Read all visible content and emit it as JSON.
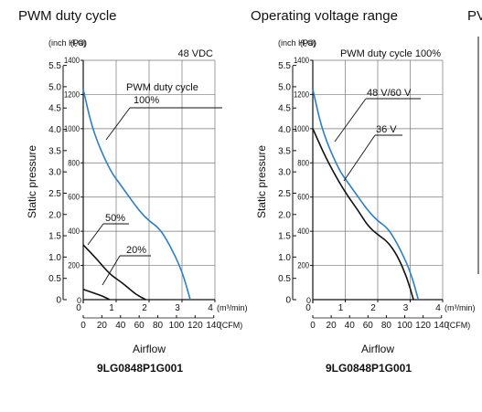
{
  "chart_data": [
    {
      "type": "line",
      "title": "PWM duty cycle",
      "xlabel": "Airflow",
      "x_units": "(m³/min)",
      "x2_units": "(CFM)",
      "ylabel": "Static pressure",
      "y_units_left": "(inch H₂O)",
      "y_units_right": "(Pa)",
      "model": "9LG0848P1G001",
      "condition": "48 VDC",
      "xlim": [
        0,
        4
      ],
      "ylim": [
        0,
        1400
      ],
      "x_ticks": [
        "0",
        "1",
        "2",
        "3",
        "4"
      ],
      "x2_ticks": [
        "0",
        "20",
        "40",
        "60",
        "80",
        "100",
        "120",
        "140"
      ],
      "y_ticks_pa": [
        "200",
        "400",
        "600",
        "800",
        "1000",
        "1200",
        "1400"
      ],
      "y_ticks_inch": [
        "0",
        "0.5",
        "1.0",
        "1.5",
        "2.0",
        "2.5",
        "3.0",
        "3.5",
        "4.0",
        "4.5",
        "5.0",
        "5.5"
      ],
      "grid": true,
      "series": [
        {
          "name": "100%",
          "color": "#2a7fc8",
          "points": [
            [
              0,
              1230
            ],
            [
              0.3,
              980
            ],
            [
              0.8,
              760
            ],
            [
              1.1,
              680
            ],
            [
              1.4,
              600
            ],
            [
              1.7,
              520
            ],
            [
              2.0,
              460
            ],
            [
              2.3,
              420
            ],
            [
              2.6,
              330
            ],
            [
              3.0,
              170
            ],
            [
              3.25,
              0
            ]
          ]
        },
        {
          "name": "50%",
          "color": "#111111",
          "points": [
            [
              0,
              320
            ],
            [
              0.4,
              240
            ],
            [
              0.8,
              150
            ],
            [
              1.1,
              110
            ],
            [
              1.3,
              80
            ],
            [
              1.6,
              30
            ],
            [
              1.9,
              0
            ]
          ]
        },
        {
          "name": "20%",
          "color": "#111111",
          "points": [
            [
              0,
              60
            ],
            [
              0.3,
              40
            ],
            [
              0.6,
              20
            ],
            [
              0.8,
              0
            ]
          ]
        }
      ],
      "annotations": [
        {
          "lines": [
            "PWM duty cycle",
            "100%"
          ],
          "series": "100%"
        },
        {
          "lines": [
            "50%"
          ],
          "series": "50%"
        },
        {
          "lines": [
            "20%"
          ],
          "series": "20%"
        }
      ]
    },
    {
      "type": "line",
      "title": "Operating voltage range",
      "xlabel": "Airflow",
      "x_units": "(m³/min)",
      "x2_units": "(CFM)",
      "ylabel": "Static pressure",
      "y_units_left": "(inch H₂O)",
      "y_units_right": "(Pa)",
      "model": "9LG0848P1G001",
      "condition": "PWM duty cycle 100%",
      "xlim": [
        0,
        4
      ],
      "ylim": [
        0,
        1400
      ],
      "x_ticks": [
        "0",
        "1",
        "2",
        "3",
        "4"
      ],
      "x2_ticks": [
        "0",
        "20",
        "40",
        "60",
        "80",
        "100",
        "120",
        "140"
      ],
      "y_ticks_pa": [
        "200",
        "400",
        "600",
        "800",
        "1000",
        "1200",
        "1400"
      ],
      "y_ticks_inch": [
        "0",
        "0.5",
        "1.0",
        "1.5",
        "2.0",
        "2.5",
        "3.0",
        "3.5",
        "4.0",
        "4.5",
        "5.0",
        "5.5"
      ],
      "grid": true,
      "series": [
        {
          "name": "48 V/60 V",
          "color": "#2a7fc8",
          "points": [
            [
              0,
              1230
            ],
            [
              0.3,
              980
            ],
            [
              0.8,
              760
            ],
            [
              1.1,
              680
            ],
            [
              1.4,
              600
            ],
            [
              1.7,
              520
            ],
            [
              2.0,
              460
            ],
            [
              2.3,
              420
            ],
            [
              2.6,
              330
            ],
            [
              3.0,
              170
            ],
            [
              3.25,
              0
            ]
          ]
        },
        {
          "name": "36 V",
          "color": "#111111",
          "points": [
            [
              0,
              1000
            ],
            [
              0.4,
              830
            ],
            [
              0.8,
              690
            ],
            [
              1.1,
              600
            ],
            [
              1.4,
              520
            ],
            [
              1.7,
              430
            ],
            [
              2.0,
              380
            ],
            [
              2.3,
              340
            ],
            [
              2.6,
              260
            ],
            [
              2.9,
              130
            ],
            [
              3.1,
              0
            ]
          ]
        }
      ],
      "annotations": [
        {
          "lines": [
            "48 V/60 V"
          ],
          "series": "48 V/60 V"
        },
        {
          "lines": [
            "36 V"
          ],
          "series": "36 V"
        }
      ]
    }
  ],
  "partial_chart": {
    "title_fragment": "PV"
  }
}
